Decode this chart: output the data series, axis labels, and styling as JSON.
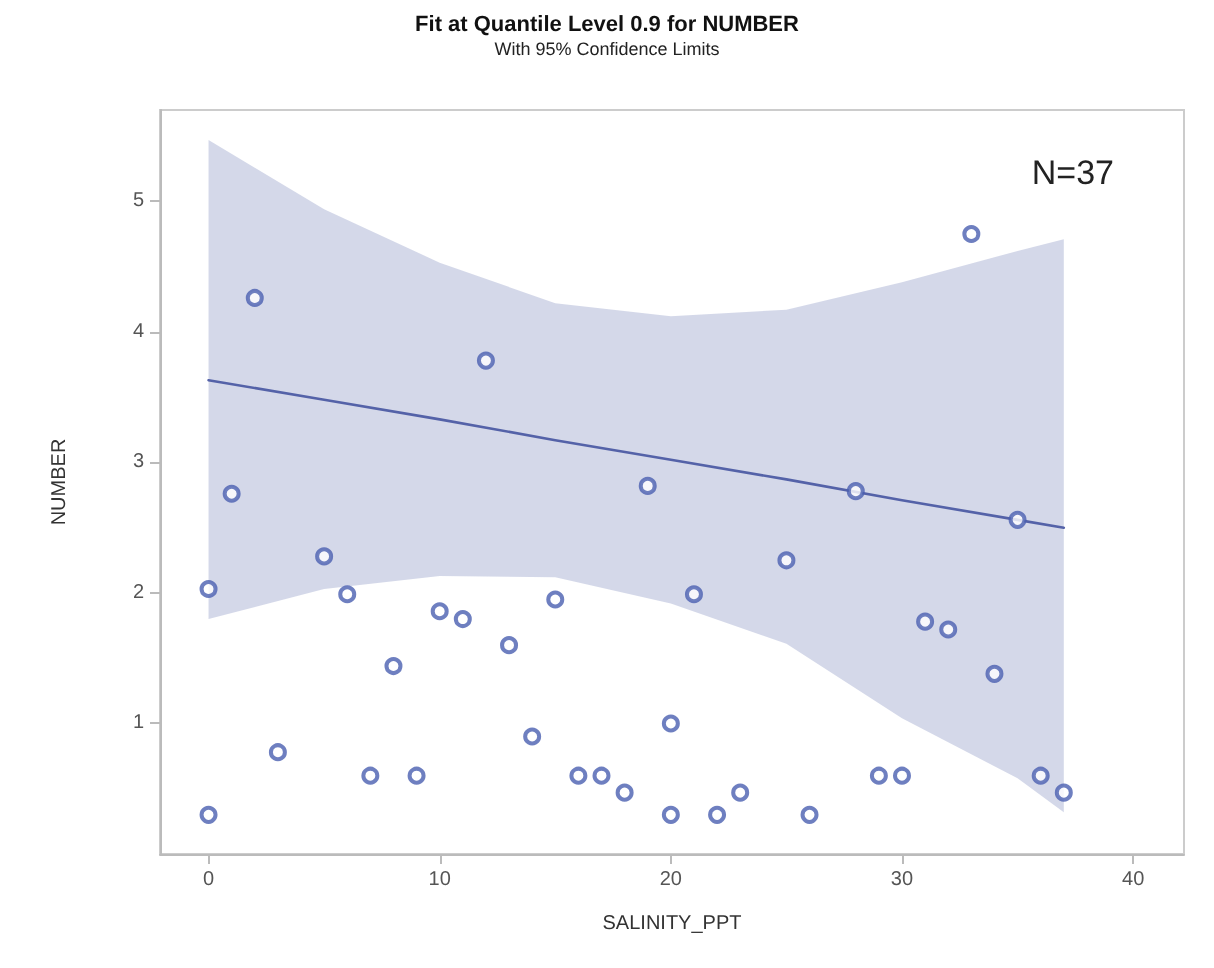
{
  "chart_data": {
    "type": "scatter",
    "title": "Fit at Quantile Level 0.9 for NUMBER",
    "subtitle": "With 95% Confidence Limits",
    "xlabel": "SALINITY_PPT",
    "ylabel": "NUMBER",
    "annotations": [
      "N=37"
    ],
    "xlim": [
      -2.1,
      42.2
    ],
    "xticks": [
      0,
      10,
      20,
      30,
      40
    ],
    "ylim": [
      0,
      5.7
    ],
    "yticks": [
      1,
      2,
      3,
      4,
      5
    ],
    "grid": false,
    "series": [
      {
        "type": "line",
        "marker": "none",
        "color": "#5462a8",
        "x": [
          0,
          5,
          10,
          15,
          20,
          25,
          30,
          35,
          37
        ],
        "values": [
          3.63,
          3.48,
          3.33,
          3.17,
          3.02,
          2.87,
          2.71,
          2.56,
          2.5
        ],
        "lower": [
          1.8,
          2.03,
          2.13,
          2.12,
          1.92,
          1.61,
          1.04,
          0.58,
          0.32
        ],
        "upper": [
          5.47,
          4.94,
          4.53,
          4.22,
          4.12,
          4.17,
          4.38,
          4.62,
          4.71
        ]
      },
      {
        "marker": "circle",
        "color": "#4a5fb0",
        "x": [
          0,
          0,
          1,
          2,
          3,
          5,
          6,
          7,
          8,
          9,
          10,
          11,
          12,
          13,
          14,
          15,
          16,
          17,
          18,
          19,
          20,
          20,
          21,
          22,
          23,
          25,
          26,
          28,
          29,
          30,
          31,
          32,
          33,
          34,
          35,
          36,
          37
        ],
        "values": [
          2.03,
          0.3,
          2.76,
          4.26,
          0.78,
          2.28,
          1.99,
          0.6,
          1.44,
          0.6,
          1.86,
          1.8,
          3.78,
          1.6,
          0.9,
          1.95,
          0.6,
          0.6,
          0.47,
          2.82,
          1.0,
          0.3,
          1.99,
          0.3,
          0.47,
          2.25,
          0.3,
          2.78,
          0.6,
          0.6,
          1.78,
          1.72,
          4.75,
          1.38,
          2.56,
          0.6,
          0.47
        ]
      }
    ]
  }
}
